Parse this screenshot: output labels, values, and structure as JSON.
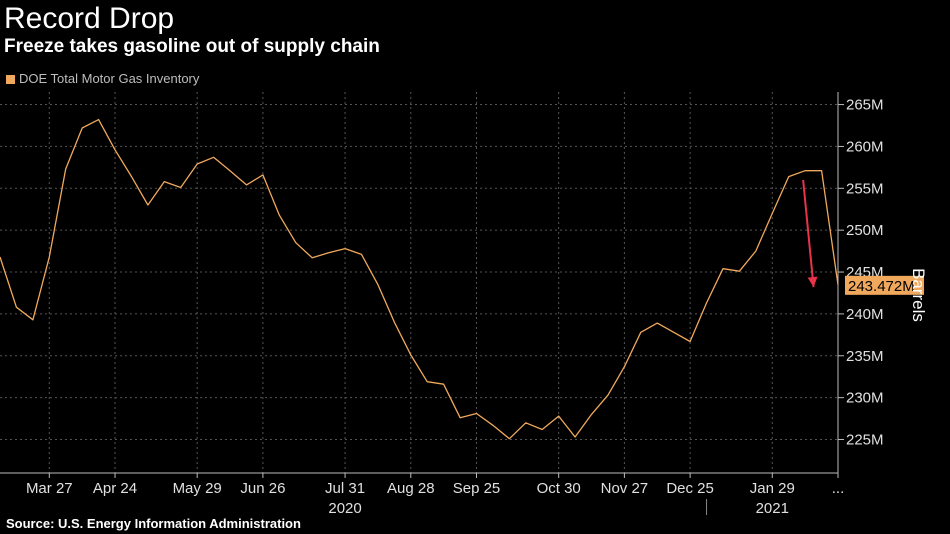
{
  "title": "Record Drop",
  "subtitle": "Freeze takes gasoline out of supply chain",
  "source": "Source: U.S. Energy Information Administration",
  "colors": {
    "background": "#000000",
    "series": "#f0a95c",
    "grid": "#555555",
    "arrow": "#e8334a",
    "text": "#ffffff"
  },
  "chart_data": {
    "type": "line",
    "title": "Record Drop",
    "subtitle": "Freeze takes gasoline out of supply chain",
    "ylabel": "Barrels",
    "xlabel": "",
    "legend": "top-left",
    "grid": true,
    "ylim": [
      221000000,
      266500000
    ],
    "xlim": [
      "2020-03-06",
      "2021-02-26"
    ],
    "yticks": [
      225000000,
      230000000,
      235000000,
      240000000,
      245000000,
      250000000,
      255000000,
      260000000,
      265000000
    ],
    "ytick_labels": [
      "225M",
      "230M",
      "235M",
      "240M",
      "245M",
      "250M",
      "255M",
      "260M",
      "265M"
    ],
    "xticks": [
      "2020-03-27",
      "2020-04-24",
      "2020-05-29",
      "2020-06-26",
      "2020-07-31",
      "2020-08-28",
      "2020-09-25",
      "2020-10-30",
      "2020-11-27",
      "2020-12-25",
      "2021-01-29",
      "2021-02-26"
    ],
    "xtick_labels": [
      "Mar 27",
      "Apr 24",
      "May 29",
      "Jun 26",
      "Jul 31",
      "Aug 28",
      "Sep 25",
      "Oct 30",
      "Nov 27",
      "Dec 25",
      "Jan 29",
      "..."
    ],
    "year_labels": [
      {
        "label": "2020",
        "x": "2020-07-31"
      },
      {
        "label": "2021",
        "x": "2021-01-29"
      }
    ],
    "year_separator": "2021-01-01",
    "last_value_label": "243.472M",
    "series": [
      {
        "name": "DOE Total Motor Gas Inventory",
        "x": [
          "2020-03-06",
          "2020-03-13",
          "2020-03-20",
          "2020-03-27",
          "2020-04-03",
          "2020-04-10",
          "2020-04-17",
          "2020-04-24",
          "2020-05-01",
          "2020-05-08",
          "2020-05-15",
          "2020-05-22",
          "2020-05-29",
          "2020-06-05",
          "2020-06-12",
          "2020-06-19",
          "2020-06-26",
          "2020-07-03",
          "2020-07-10",
          "2020-07-17",
          "2020-07-24",
          "2020-07-31",
          "2020-08-07",
          "2020-08-14",
          "2020-08-21",
          "2020-08-28",
          "2020-09-04",
          "2020-09-11",
          "2020-09-18",
          "2020-09-25",
          "2020-10-02",
          "2020-10-09",
          "2020-10-16",
          "2020-10-23",
          "2020-10-30",
          "2020-11-06",
          "2020-11-13",
          "2020-11-20",
          "2020-11-27",
          "2020-12-04",
          "2020-12-11",
          "2020-12-18",
          "2020-12-25",
          "2021-01-01",
          "2021-01-08",
          "2021-01-15",
          "2021-01-22",
          "2021-01-29",
          "2021-02-05",
          "2021-02-12",
          "2021-02-19",
          "2021-02-26"
        ],
        "values": [
          246800000,
          240800000,
          239300000,
          246800000,
          257300000,
          262200000,
          263200000,
          259600000,
          256400000,
          253000000,
          255800000,
          255100000,
          257900000,
          258700000,
          257100000,
          255400000,
          256600000,
          251800000,
          248500000,
          246700000,
          247300000,
          247800000,
          247100000,
          243500000,
          239000000,
          235100000,
          231900000,
          231600000,
          227600000,
          228100000,
          226700000,
          225100000,
          227000000,
          226200000,
          227800000,
          225300000,
          228000000,
          230300000,
          233700000,
          237800000,
          238900000,
          237800000,
          236700000,
          241300000,
          245400000,
          245100000,
          247500000,
          252000000,
          256400000,
          257100000,
          257100000,
          243472000
        ]
      }
    ]
  }
}
